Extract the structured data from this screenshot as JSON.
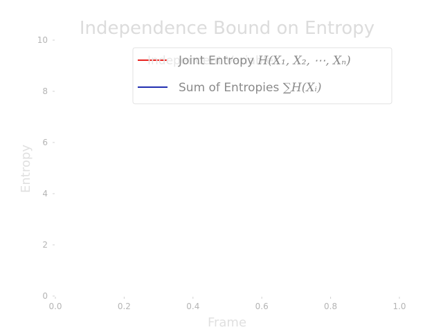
{
  "chart_data": {
    "type": "line",
    "title": "Independence Bound on Entropy",
    "xlabel": "Frame",
    "ylabel": "Entropy",
    "xlim": [
      0.0,
      1.0
    ],
    "ylim": [
      0,
      10
    ],
    "x_ticks": [
      "0.0",
      "0.2",
      "0.4",
      "0.6",
      "0.8",
      "1.0"
    ],
    "y_ticks": [
      "0",
      "2",
      "4",
      "6",
      "8",
      "10"
    ],
    "grid": false,
    "legend_position": "top-right",
    "series": [
      {
        "name": "Joint Entropy H(X₁, X₂, ⋯, Xₙ)",
        "color": "#e8201c",
        "values": []
      },
      {
        "name": "Sum of Entropies ∑H(Xᵢ)",
        "color": "#1f2db0",
        "values": []
      }
    ],
    "annotations": [
      "Independent Variables"
    ]
  },
  "legend": {
    "joint_prefix": "Joint Entropy ",
    "joint_math": "H(X₁, X₂, ⋯, Xₙ)",
    "sum_prefix": "Sum of Entropies ",
    "sum_math": "∑H(Xᵢ)"
  }
}
